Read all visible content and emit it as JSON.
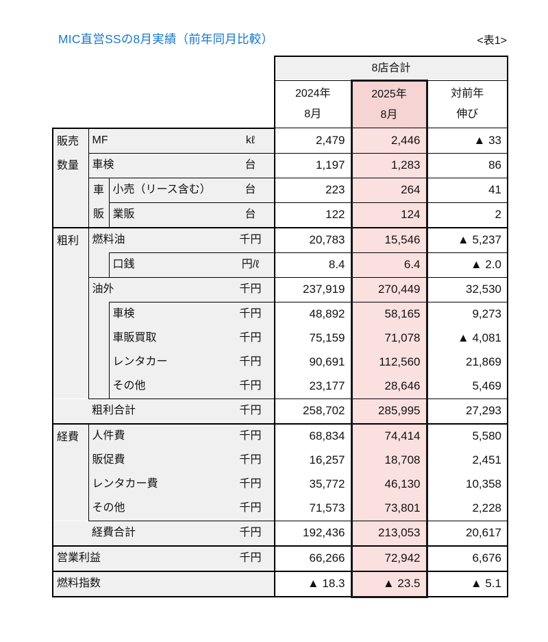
{
  "page": {
    "title": "MIC直営SSの8月実績（前年同月比較）",
    "tag": "<表1>"
  },
  "colors": {
    "title_blue": "#1878C8",
    "label_gray": "#F0F0F0",
    "pink_header": "#F6D4D4",
    "pink_body": "#FBE0E0",
    "heavy_border": "#141414"
  },
  "header": {
    "total": "8店合計",
    "y2024_l1": "2024年",
    "y2024_l2": "8月",
    "y2025_l1": "2025年",
    "y2025_l2": "8月",
    "diff_l1": "対前年",
    "diff_l2": "伸び"
  },
  "groups": {
    "sales_l1": "販売",
    "sales_l2": "数量",
    "car_l1": "車",
    "car_l2": "販",
    "gross": "粗利",
    "expense": "経費"
  },
  "rows": [
    {
      "label": "MF",
      "unit": "kℓ",
      "y2024": "2,479",
      "y2025": "2,446",
      "diff": "▲ 33"
    },
    {
      "label": "車検",
      "unit": "台",
      "y2024": "1,197",
      "y2025": "1,283",
      "diff": "86"
    },
    {
      "label": "小売（リース含む）",
      "unit": "台",
      "y2024": "223",
      "y2025": "264",
      "diff": "41"
    },
    {
      "label": "業販",
      "unit": "台",
      "y2024": "122",
      "y2025": "124",
      "diff": "2"
    },
    {
      "label": "燃料油",
      "unit": "千円",
      "y2024": "20,783",
      "y2025": "15,546",
      "diff": "▲ 5,237"
    },
    {
      "label": "口銭",
      "unit": "円/ℓ",
      "y2024": "8.4",
      "y2025": "6.4",
      "diff": "▲ 2.0"
    },
    {
      "label": "油外",
      "unit": "千円",
      "y2024": "237,919",
      "y2025": "270,449",
      "diff": "32,530"
    },
    {
      "label": "車検",
      "unit": "千円",
      "y2024": "48,892",
      "y2025": "58,165",
      "diff": "9,273"
    },
    {
      "label": "車販買取",
      "unit": "千円",
      "y2024": "75,159",
      "y2025": "71,078",
      "diff": "▲ 4,081"
    },
    {
      "label": "レンタカー",
      "unit": "千円",
      "y2024": "90,691",
      "y2025": "112,560",
      "diff": "21,869"
    },
    {
      "label": "その他",
      "unit": "千円",
      "y2024": "23,177",
      "y2025": "28,646",
      "diff": "5,469"
    },
    {
      "label": "粗利合計",
      "unit": "千円",
      "y2024": "258,702",
      "y2025": "285,995",
      "diff": "27,293"
    },
    {
      "label": "人件費",
      "unit": "千円",
      "y2024": "68,834",
      "y2025": "74,414",
      "diff": "5,580"
    },
    {
      "label": "販促費",
      "unit": "千円",
      "y2024": "16,257",
      "y2025": "18,708",
      "diff": "2,451"
    },
    {
      "label": "レンタカー費",
      "unit": "千円",
      "y2024": "35,772",
      "y2025": "46,130",
      "diff": "10,358"
    },
    {
      "label": "その他",
      "unit": "千円",
      "y2024": "71,573",
      "y2025": "73,801",
      "diff": "2,228"
    },
    {
      "label": "経費合計",
      "unit": "千円",
      "y2024": "192,436",
      "y2025": "213,053",
      "diff": "20,617"
    },
    {
      "label": "営業利益",
      "unit": "千円",
      "y2024": "66,266",
      "y2025": "72,942",
      "diff": "6,676"
    },
    {
      "label": "燃料指数",
      "unit": "",
      "y2024": "▲ 18.3",
      "y2025": "▲ 23.5",
      "diff": "▲ 5.1"
    }
  ]
}
